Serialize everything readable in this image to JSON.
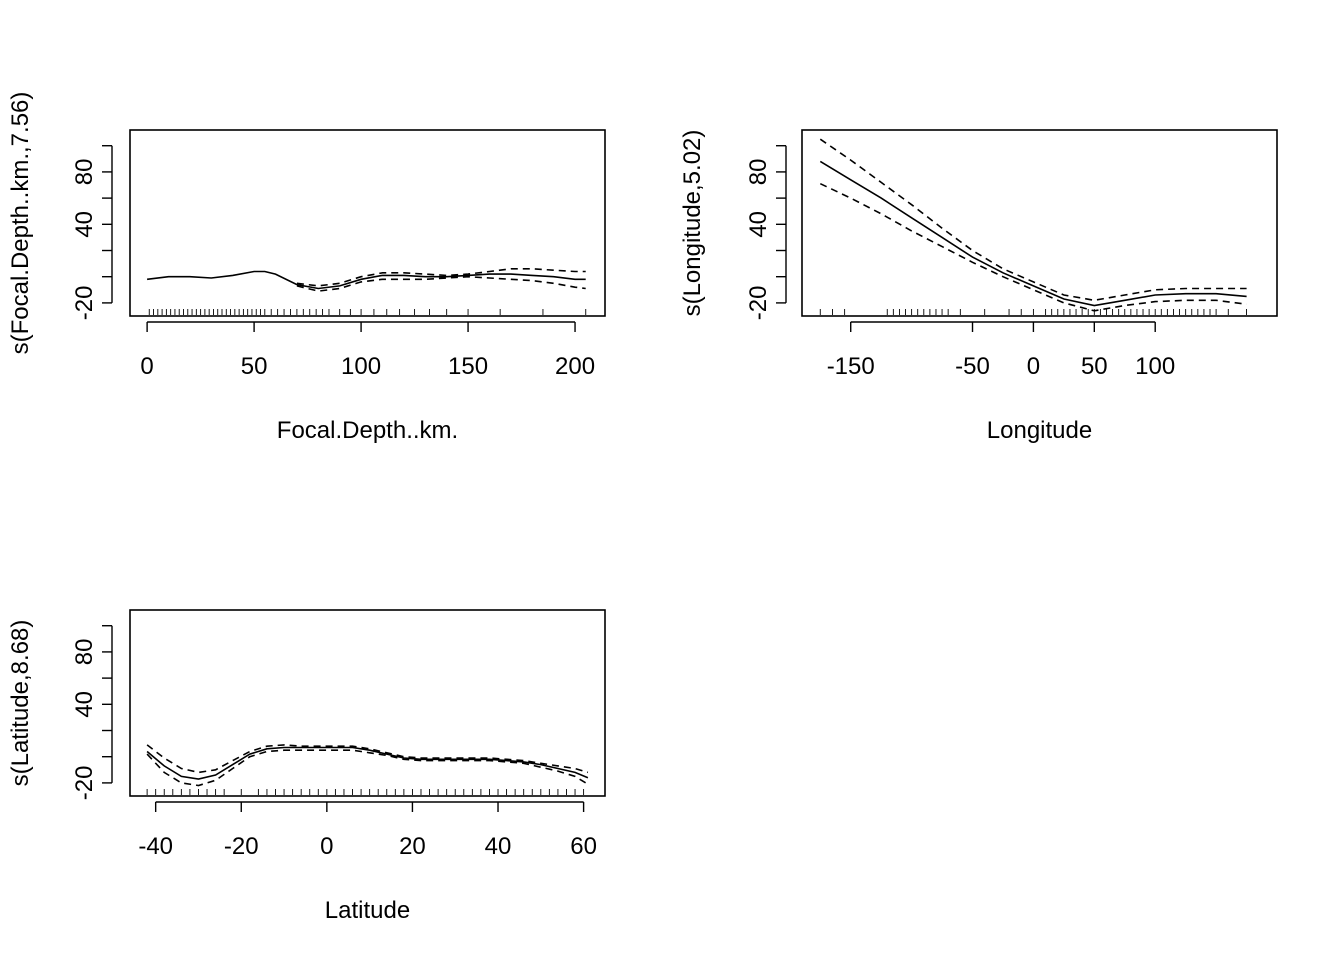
{
  "chart_data": [
    {
      "type": "line",
      "title": "",
      "xlabel": "Focal.Depth..km.",
      "ylabel": "s(Focal.Depth..km.,7.56)",
      "xlim": [
        -8,
        214
      ],
      "ylim": [
        -30,
        112
      ],
      "xticks": [
        0,
        50,
        100,
        150,
        200
      ],
      "yticks": [
        -20,
        0,
        20,
        40,
        60,
        80,
        100
      ],
      "ytick_labels": [
        "-20",
        "",
        "",
        "40",
        "",
        "80",
        ""
      ],
      "grid": false,
      "series": [
        {
          "role": "fit",
          "style": "solid",
          "x": [
            0,
            10,
            20,
            30,
            40,
            50,
            55,
            60,
            70,
            80,
            90,
            100,
            110,
            120,
            130,
            140,
            150,
            160,
            170,
            180,
            190,
            200,
            205
          ],
          "y": [
            -2,
            0,
            0,
            -1,
            1,
            4,
            4,
            2,
            -6,
            -9,
            -7,
            -2,
            1,
            1,
            0,
            0,
            1,
            2,
            2,
            1,
            0,
            -2,
            -2
          ]
        },
        {
          "role": "upper",
          "style": "dashed",
          "x": [
            70,
            80,
            90,
            100,
            110,
            120,
            130,
            140,
            150,
            160,
            170,
            180,
            190,
            200,
            205
          ],
          "y": [
            -5,
            -7,
            -5,
            0,
            3,
            3,
            2,
            1,
            2,
            4,
            6,
            6,
            5,
            4,
            4
          ]
        },
        {
          "role": "lower",
          "style": "dashed",
          "x": [
            70,
            80,
            90,
            100,
            110,
            120,
            130,
            140,
            150,
            160,
            170,
            180,
            190,
            200,
            205
          ],
          "y": [
            -7,
            -11,
            -9,
            -4,
            -2,
            -2,
            -2,
            -1,
            0,
            -1,
            -2,
            -3,
            -5,
            -8,
            -9
          ]
        }
      ],
      "rug": [
        1,
        3,
        5,
        7,
        9,
        11,
        13,
        15,
        17,
        19,
        21,
        23,
        25,
        27,
        29,
        31,
        33,
        35,
        37,
        39,
        41,
        43,
        45,
        47,
        49,
        51,
        53,
        55,
        58,
        61,
        64,
        67,
        70,
        73,
        76,
        79,
        82,
        85,
        90,
        95,
        100,
        106,
        112,
        118,
        125,
        132,
        140,
        150,
        165,
        185,
        205
      ]
    },
    {
      "type": "line",
      "title": "",
      "xlabel": "Longitude",
      "ylabel": "s(Longitude,5.02)",
      "xlim": [
        -190,
        200
      ],
      "ylim": [
        -30,
        112
      ],
      "xticks": [
        -150,
        -50,
        0,
        50,
        100
      ],
      "yticks": [
        -20,
        0,
        20,
        40,
        60,
        80,
        100
      ],
      "ytick_labels": [
        "-20",
        "",
        "",
        "40",
        "",
        "80",
        ""
      ],
      "grid": false,
      "series": [
        {
          "role": "fit",
          "style": "solid",
          "x": [
            -175,
            -150,
            -125,
            -100,
            -75,
            -50,
            -25,
            0,
            25,
            50,
            75,
            100,
            125,
            150,
            175
          ],
          "y": [
            88,
            74,
            60,
            45,
            30,
            15,
            3,
            -7,
            -17,
            -22,
            -18,
            -14,
            -13,
            -13,
            -15
          ]
        },
        {
          "role": "upper",
          "style": "dashed",
          "x": [
            -175,
            -150,
            -125,
            -100,
            -75,
            -50,
            -25,
            0,
            25,
            50,
            75,
            100,
            125,
            150,
            175
          ],
          "y": [
            105,
            89,
            72,
            55,
            37,
            20,
            6,
            -4,
            -14,
            -18,
            -14,
            -10,
            -9,
            -9,
            -9
          ]
        },
        {
          "role": "lower",
          "style": "dashed",
          "x": [
            -175,
            -150,
            -125,
            -100,
            -75,
            -50,
            -25,
            0,
            25,
            50,
            75,
            100,
            125,
            150,
            175
          ],
          "y": [
            71,
            60,
            48,
            35,
            23,
            11,
            0,
            -10,
            -20,
            -26,
            -22,
            -19,
            -18,
            -18,
            -21
          ]
        }
      ],
      "rug": [
        -175,
        -165,
        -155,
        -120,
        -115,
        -110,
        -105,
        -100,
        -95,
        -90,
        -85,
        -80,
        -75,
        -70,
        -60,
        -40,
        -20,
        -10,
        0,
        10,
        15,
        20,
        25,
        30,
        35,
        40,
        45,
        50,
        55,
        60,
        65,
        70,
        75,
        80,
        85,
        90,
        95,
        100,
        105,
        110,
        115,
        120,
        125,
        130,
        135,
        140,
        145,
        150,
        160,
        175
      ]
    },
    {
      "type": "line",
      "title": "",
      "xlabel": "Latitude",
      "ylabel": "s(Latitude,8.68)",
      "xlim": [
        -46,
        65
      ],
      "ylim": [
        -30,
        112
      ],
      "xticks": [
        -40,
        -20,
        0,
        20,
        40,
        60
      ],
      "yticks": [
        -20,
        0,
        20,
        40,
        60,
        80,
        100
      ],
      "ytick_labels": [
        "-20",
        "",
        "",
        "40",
        "",
        "80",
        ""
      ],
      "grid": false,
      "series": [
        {
          "role": "fit",
          "style": "solid",
          "x": [
            -42,
            -38,
            -34,
            -30,
            -26,
            -22,
            -18,
            -14,
            -10,
            -6,
            -2,
            2,
            6,
            10,
            14,
            18,
            22,
            26,
            30,
            34,
            38,
            42,
            46,
            50,
            54,
            58,
            61
          ],
          "y": [
            4,
            -7,
            -15,
            -17,
            -14,
            -6,
            2,
            6,
            7,
            7,
            7,
            7,
            7,
            5,
            2,
            -1,
            -2,
            -2,
            -2,
            -2,
            -2,
            -3,
            -4,
            -6,
            -9,
            -12,
            -16
          ]
        },
        {
          "role": "upper",
          "style": "dashed",
          "x": [
            -42,
            -38,
            -34,
            -30,
            -26,
            -22,
            -18,
            -14,
            -10,
            -6,
            -2,
            2,
            6,
            10,
            14,
            18,
            22,
            26,
            30,
            34,
            38,
            42,
            46,
            50,
            54,
            58,
            61
          ],
          "y": [
            9,
            -1,
            -9,
            -12,
            -10,
            -3,
            4,
            8,
            9,
            8,
            8,
            8,
            8,
            6,
            3,
            0,
            -1,
            -1,
            -1,
            -1,
            -1,
            -2,
            -3,
            -5,
            -7,
            -9,
            -12
          ]
        },
        {
          "role": "lower",
          "style": "dashed",
          "x": [
            -42,
            -38,
            -34,
            -30,
            -26,
            -22,
            -18,
            -14,
            -10,
            -6,
            -2,
            2,
            6,
            10,
            14,
            18,
            22,
            26,
            30,
            34,
            38,
            42,
            46,
            50,
            54,
            58,
            61
          ],
          "y": [
            2,
            -12,
            -20,
            -22,
            -18,
            -9,
            0,
            4,
            5,
            5,
            5,
            5,
            5,
            3,
            1,
            -2,
            -3,
            -3,
            -3,
            -3,
            -3,
            -4,
            -5,
            -8,
            -11,
            -15,
            -21
          ]
        }
      ],
      "rug": [
        -42,
        -40,
        -38,
        -36,
        -34,
        -32,
        -30,
        -28,
        -26,
        -24,
        -20,
        -16,
        -14,
        -12,
        -10,
        -8,
        -6,
        -4,
        -2,
        0,
        2,
        4,
        6,
        8,
        10,
        12,
        14,
        16,
        18,
        20,
        22,
        24,
        26,
        28,
        30,
        32,
        34,
        36,
        38,
        40,
        42,
        44,
        46,
        48,
        50,
        52,
        54,
        56,
        58,
        60
      ]
    }
  ]
}
